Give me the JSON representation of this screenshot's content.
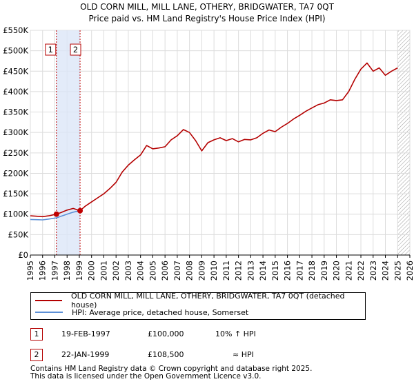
{
  "title_line1": "OLD CORN MILL, MILL LANE, OTHERY, BRIDGWATER, TA7 0QT",
  "title_line2": "Price paid vs. HM Land Registry's House Price Index (HPI)",
  "chart_data": {
    "type": "line",
    "ylim": [
      0,
      550000
    ],
    "xlim": [
      1995,
      2026
    ],
    "y_ticks": [
      {
        "value": 0,
        "label": "£0"
      },
      {
        "value": 50000,
        "label": "£50K"
      },
      {
        "value": 100000,
        "label": "£100K"
      },
      {
        "value": 150000,
        "label": "£150K"
      },
      {
        "value": 200000,
        "label": "£200K"
      },
      {
        "value": 250000,
        "label": "£250K"
      },
      {
        "value": 300000,
        "label": "£300K"
      },
      {
        "value": 350000,
        "label": "£350K"
      },
      {
        "value": 400000,
        "label": "£400K"
      },
      {
        "value": 450000,
        "label": "£450K"
      },
      {
        "value": 500000,
        "label": "£500K"
      },
      {
        "value": 550000,
        "label": "£550K"
      }
    ],
    "x_ticks": [
      "1995",
      "1996",
      "1997",
      "1998",
      "1999",
      "2000",
      "2001",
      "2002",
      "2003",
      "2004",
      "2005",
      "2006",
      "2007",
      "2008",
      "2009",
      "2010",
      "2011",
      "2012",
      "2013",
      "2014",
      "2015",
      "2016",
      "2017",
      "2018",
      "2019",
      "2020",
      "2021",
      "2022",
      "2023",
      "2024",
      "2025",
      "2026"
    ],
    "grid": true,
    "shaded_period": {
      "from": 1997.13,
      "to": 1999.06,
      "color": "#dce6f8"
    },
    "future_hatch_from": 2025.0,
    "series": [
      {
        "name": "OLD CORN MILL, MILL LANE, OTHERY, BRIDGWATER, TA7 0QT (detached house)",
        "color": "#b40000",
        "x": [
          1995.0,
          1995.5,
          1996.0,
          1996.5,
          1997.13,
          1997.5,
          1998.0,
          1998.5,
          1999.06,
          1999.5,
          2000.0,
          2000.5,
          2001.0,
          2001.5,
          2002.0,
          2002.5,
          2003.0,
          2003.5,
          2004.0,
          2004.5,
          2005.0,
          2005.5,
          2006.0,
          2006.5,
          2007.0,
          2007.5,
          2008.0,
          2008.5,
          2009.0,
          2009.5,
          2010.0,
          2010.5,
          2011.0,
          2011.5,
          2012.0,
          2012.5,
          2013.0,
          2013.5,
          2014.0,
          2014.5,
          2015.0,
          2015.5,
          2016.0,
          2016.5,
          2017.0,
          2017.5,
          2018.0,
          2018.5,
          2019.0,
          2019.5,
          2020.0,
          2020.5,
          2021.0,
          2021.5,
          2022.0,
          2022.5,
          2023.0,
          2023.5,
          2024.0,
          2024.5,
          2025.0
        ],
        "values": [
          96000,
          95000,
          94000,
          96000,
          100000,
          104000,
          110000,
          114000,
          108500,
          120000,
          130000,
          140000,
          150000,
          163000,
          178000,
          203000,
          220000,
          233000,
          245000,
          268000,
          260000,
          262000,
          265000,
          282000,
          292000,
          307000,
          300000,
          280000,
          255000,
          275000,
          282000,
          287000,
          280000,
          285000,
          277000,
          283000,
          282000,
          287000,
          298000,
          306000,
          302000,
          313000,
          322000,
          333000,
          342000,
          352000,
          360000,
          368000,
          372000,
          380000,
          378000,
          380000,
          400000,
          430000,
          455000,
          470000,
          450000,
          458000,
          440000,
          450000,
          458000
        ]
      },
      {
        "name": "HPI: Average price, detached house, Somerset",
        "color": "#5b8fd6",
        "x": [
          1995.0,
          1995.5,
          1996.0,
          1996.5,
          1997.13,
          1997.5,
          1998.0,
          1998.5,
          1999.06
        ],
        "values": [
          87000,
          86500,
          86000,
          88000,
          91000,
          95000,
          100000,
          105000,
          108500
        ]
      }
    ],
    "markers": [
      {
        "label": "1",
        "x": 1997.13,
        "y": 100000
      },
      {
        "label": "2",
        "x": 1999.06,
        "y": 108500
      }
    ]
  },
  "legend": {
    "items": [
      {
        "label": "OLD CORN MILL, MILL LANE, OTHERY, BRIDGWATER, TA7 0QT (detached house)",
        "color": "#b40000"
      },
      {
        "label": "HPI: Average price, detached house, Somerset",
        "color": "#5b8fd6"
      }
    ]
  },
  "transactions": [
    {
      "num": "1",
      "date": "19-FEB-1997",
      "price": "£100,000",
      "hpi": "10% ↑ HPI"
    },
    {
      "num": "2",
      "date": "22-JAN-1999",
      "price": "£108,500",
      "hpi": "≈ HPI"
    }
  ],
  "footer_line1": "Contains HM Land Registry data © Crown copyright and database right 2025.",
  "footer_line2": "This data is licensed under the Open Government Licence v3.0."
}
